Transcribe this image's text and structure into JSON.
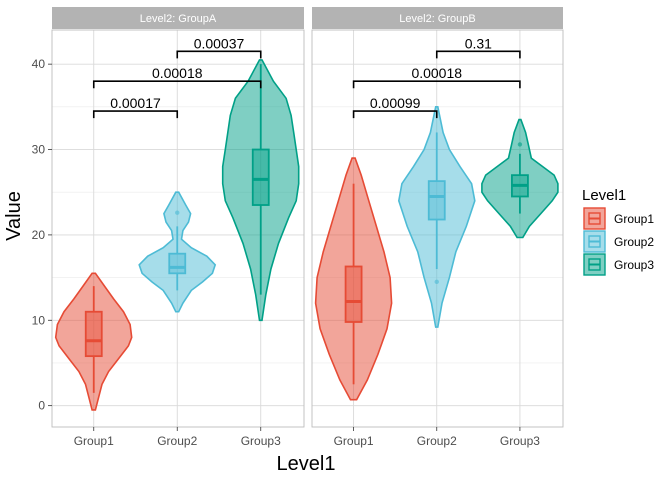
{
  "chart_data": {
    "type": "violin",
    "xlabel": "Level1",
    "ylabel": "Value",
    "ylim": [
      -2.5,
      44
    ],
    "yticks": [
      0,
      10,
      20,
      30,
      40
    ],
    "categories": [
      "Group1",
      "Group2",
      "Group3"
    ],
    "grid": true,
    "legend": {
      "title": "Level1",
      "position": "right",
      "items": [
        {
          "label": "Group1",
          "color": "#E64B35"
        },
        {
          "label": "Group2",
          "color": "#4DBBD5"
        },
        {
          "label": "Group3",
          "color": "#00A087"
        }
      ]
    },
    "panels": [
      {
        "strip": "Level2: GroupA",
        "groups": [
          {
            "name": "Group1",
            "color": "#E64B35",
            "min": -0.5,
            "max": 15.5,
            "q1": 5.8,
            "median": 7.6,
            "q3": 11.0,
            "whisker_low": 1.5,
            "whisker_high": 14.0,
            "outliers": [],
            "density": [
              [
                -0.5,
                0.2
              ],
              [
                1,
                0.6
              ],
              [
                2.5,
                1.0
              ],
              [
                4,
                1.8
              ],
              [
                5.5,
                3.0
              ],
              [
                7,
                4.2
              ],
              [
                8,
                4.6
              ],
              [
                9.5,
                4.4
              ],
              [
                11,
                3.6
              ],
              [
                12.5,
                2.4
              ],
              [
                14,
                1.3
              ],
              [
                15.5,
                0.2
              ]
            ]
          },
          {
            "name": "Group2",
            "color": "#4DBBD5",
            "min": 11.0,
            "max": 25.0,
            "q1": 15.5,
            "median": 16.2,
            "q3": 17.8,
            "whisker_low": 13.5,
            "whisker_high": 21.0,
            "outliers": [
              22.6
            ],
            "density": [
              [
                11,
                0.2
              ],
              [
                12,
                0.8
              ],
              [
                13.5,
                2.0
              ],
              [
                14.5,
                3.6
              ],
              [
                15.5,
                5.0
              ],
              [
                16.5,
                5.4
              ],
              [
                17.5,
                4.2
              ],
              [
                18.5,
                2.0
              ],
              [
                19.5,
                0.6
              ],
              [
                20.5,
                0.8
              ],
              [
                21.5,
                1.6
              ],
              [
                22.5,
                1.9
              ],
              [
                23.5,
                1.2
              ],
              [
                25,
                0.2
              ]
            ]
          },
          {
            "name": "Group3",
            "color": "#00A087",
            "min": 10.0,
            "max": 40.5,
            "q1": 23.5,
            "median": 26.5,
            "q3": 30.0,
            "whisker_low": 13.0,
            "whisker_high": 40.0,
            "outliers": [],
            "density": [
              [
                10,
                0.1
              ],
              [
                13,
                0.4
              ],
              [
                16,
                0.8
              ],
              [
                19,
                1.4
              ],
              [
                22,
                2.2
              ],
              [
                24,
                2.8
              ],
              [
                26,
                3.0
              ],
              [
                28,
                3.0
              ],
              [
                30,
                2.8
              ],
              [
                32,
                2.6
              ],
              [
                34,
                2.4
              ],
              [
                36,
                2.0
              ],
              [
                38,
                1.0
              ],
              [
                40.5,
                0.1
              ]
            ]
          }
        ],
        "comparisons": [
          {
            "from": "Group1",
            "to": "Group2",
            "y": 34.5,
            "label": "0.00017"
          },
          {
            "from": "Group1",
            "to": "Group3",
            "y": 38.0,
            "label": "0.00018"
          },
          {
            "from": "Group2",
            "to": "Group3",
            "y": 41.5,
            "label": "0.00037"
          }
        ]
      },
      {
        "strip": "Level2: GroupB",
        "groups": [
          {
            "name": "Group1",
            "color": "#E64B35",
            "min": 0.7,
            "max": 29.0,
            "q1": 9.8,
            "median": 12.2,
            "q3": 16.3,
            "whisker_low": 2.5,
            "whisker_high": 26.0,
            "outliers": [],
            "density": [
              [
                0.7,
                0.2
              ],
              [
                3,
                0.9
              ],
              [
                6,
                1.6
              ],
              [
                9,
                2.2
              ],
              [
                12,
                2.5
              ],
              [
                15,
                2.4
              ],
              [
                18,
                2.0
              ],
              [
                21,
                1.5
              ],
              [
                24,
                1.0
              ],
              [
                27,
                0.5
              ],
              [
                29,
                0.1
              ]
            ]
          },
          {
            "name": "Group2",
            "color": "#4DBBD5",
            "min": 9.2,
            "max": 35.0,
            "q1": 21.8,
            "median": 24.5,
            "q3": 26.3,
            "whisker_low": 16.0,
            "whisker_high": 32.0,
            "outliers": [
              14.5
            ],
            "density": [
              [
                9.2,
                0.1
              ],
              [
                12,
                0.5
              ],
              [
                15,
                1.2
              ],
              [
                18,
                1.8
              ],
              [
                21,
                2.8
              ],
              [
                24,
                3.6
              ],
              [
                26,
                3.3
              ],
              [
                28,
                2.2
              ],
              [
                30,
                1.2
              ],
              [
                32,
                0.6
              ],
              [
                35,
                0.1
              ]
            ]
          },
          {
            "name": "Group3",
            "color": "#00A087",
            "min": 19.7,
            "max": 33.5,
            "q1": 24.5,
            "median": 25.8,
            "q3": 27.0,
            "whisker_low": 22.5,
            "whisker_high": 29.5,
            "outliers": [
              30.6
            ],
            "density": [
              [
                19.7,
                0.3
              ],
              [
                21,
                1.0
              ],
              [
                22.5,
                2.2
              ],
              [
                24,
                3.4
              ],
              [
                25,
                4.0
              ],
              [
                26,
                4.0
              ],
              [
                27,
                3.6
              ],
              [
                28,
                2.4
              ],
              [
                29,
                1.2
              ],
              [
                30.5,
                0.9
              ],
              [
                32,
                0.6
              ],
              [
                33.5,
                0.1
              ]
            ]
          }
        ],
        "comparisons": [
          {
            "from": "Group1",
            "to": "Group2",
            "y": 34.5,
            "label": "0.00099"
          },
          {
            "from": "Group1",
            "to": "Group3",
            "y": 38.0,
            "label": "0.00018"
          },
          {
            "from": "Group2",
            "to": "Group3",
            "y": 41.5,
            "label": "0.31"
          }
        ]
      }
    ]
  }
}
